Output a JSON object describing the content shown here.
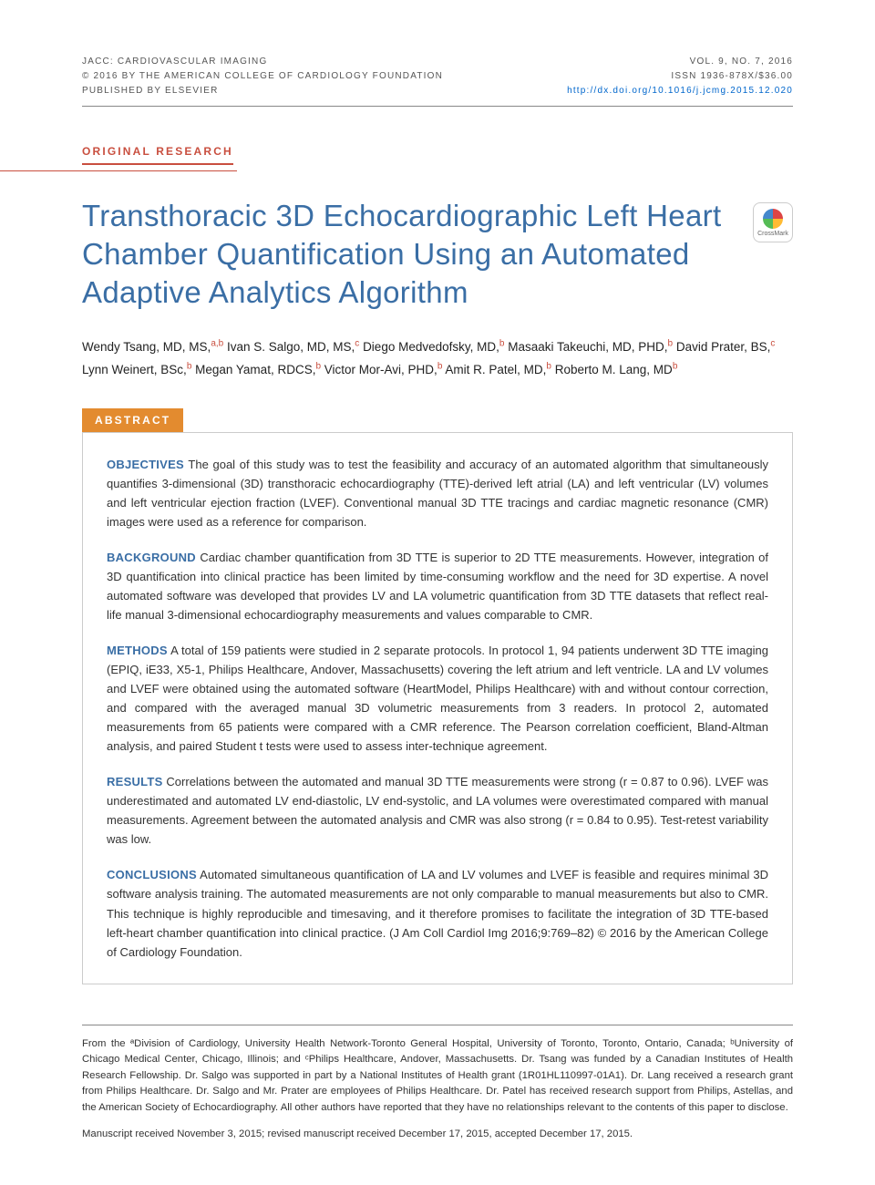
{
  "header": {
    "journal": "JACC: CARDIOVASCULAR IMAGING",
    "copyright": "© 2016 BY THE AMERICAN COLLEGE OF CARDIOLOGY FOUNDATION",
    "publisher": "PUBLISHED BY ELSEVIER",
    "volume": "VOL. 9, NO. 7, 2016",
    "issn": "ISSN 1936-878X/$36.00",
    "doi": "http://dx.doi.org/10.1016/j.jcmg.2015.12.020"
  },
  "section_tag": "ORIGINAL RESEARCH",
  "title": "Transthoracic 3D Echocardiographic Left Heart Chamber Quantification Using an Automated Adaptive Analytics Algorithm",
  "crossmark_label": "CrossMark",
  "authors": [
    {
      "name": "Wendy Tsang, MD, MS,",
      "aff": "a,b"
    },
    {
      "name": "Ivan S. Salgo, MD, MS,",
      "aff": "c"
    },
    {
      "name": "Diego Medvedofsky, MD,",
      "aff": "b"
    },
    {
      "name": "Masaaki Takeuchi, MD, PHD,",
      "aff": "b"
    },
    {
      "name": "David Prater, BS,",
      "aff": "c"
    },
    {
      "name": "Lynn Weinert, BSc,",
      "aff": "b"
    },
    {
      "name": "Megan Yamat, RDCS,",
      "aff": "b"
    },
    {
      "name": "Victor Mor-Avi, PHD,",
      "aff": "b"
    },
    {
      "name": "Amit R. Patel, MD,",
      "aff": "b"
    },
    {
      "name": "Roberto M. Lang, MD",
      "aff": "b"
    }
  ],
  "abstract_label": "ABSTRACT",
  "abstract": {
    "objectives": {
      "label": "OBJECTIVES",
      "text": "The goal of this study was to test the feasibility and accuracy of an automated algorithm that simultaneously quantifies 3-dimensional (3D) transthoracic echocardiography (TTE)-derived left atrial (LA) and left ventricular (LV) volumes and left ventricular ejection fraction (LVEF). Conventional manual 3D TTE tracings and cardiac magnetic resonance (CMR) images were used as a reference for comparison."
    },
    "background": {
      "label": "BACKGROUND",
      "text": "Cardiac chamber quantification from 3D TTE is superior to 2D TTE measurements. However, integration of 3D quantification into clinical practice has been limited by time-consuming workflow and the need for 3D expertise. A novel automated software was developed that provides LV and LA volumetric quantification from 3D TTE datasets that reflect real-life manual 3-dimensional echocardiography measurements and values comparable to CMR."
    },
    "methods": {
      "label": "METHODS",
      "text": "A total of 159 patients were studied in 2 separate protocols. In protocol 1, 94 patients underwent 3D TTE imaging (EPIQ, iE33, X5-1, Philips Healthcare, Andover, Massachusetts) covering the left atrium and left ventricle. LA and LV volumes and LVEF were obtained using the automated software (HeartModel, Philips Healthcare) with and without contour correction, and compared with the averaged manual 3D volumetric measurements from 3 readers. In protocol 2, automated measurements from 65 patients were compared with a CMR reference. The Pearson correlation coefficient, Bland-Altman analysis, and paired Student t tests were used to assess inter-technique agreement."
    },
    "results": {
      "label": "RESULTS",
      "text": "Correlations between the automated and manual 3D TTE measurements were strong (r = 0.87 to 0.96). LVEF was underestimated and automated LV end-diastolic, LV end-systolic, and LA volumes were overestimated compared with manual measurements. Agreement between the automated analysis and CMR was also strong (r = 0.84 to 0.95). Test-retest variability was low."
    },
    "conclusions": {
      "label": "CONCLUSIONS",
      "text": "Automated simultaneous quantification of LA and LV volumes and LVEF is feasible and requires minimal 3D software analysis training. The automated measurements are not only comparable to manual measurements but also to CMR. This technique is highly reproducible and timesaving, and it therefore promises to facilitate the integration of 3D TTE-based left-heart chamber quantification into clinical practice. (J Am Coll Cardiol Img 2016;9:769–82) © 2016 by the American College of Cardiology Foundation."
    }
  },
  "affiliations": "From the ªDivision of Cardiology, University Health Network-Toronto General Hospital, University of Toronto, Toronto, Ontario, Canada; ᵇUniversity of Chicago Medical Center, Chicago, Illinois; and ᶜPhilips Healthcare, Andover, Massachusetts. Dr. Tsang was funded by a Canadian Institutes of Health Research Fellowship. Dr. Salgo was supported in part by a National Institutes of Health grant (1R01HL110997-01A1). Dr. Lang received a research grant from Philips Healthcare. Dr. Salgo and Mr. Prater are employees of Philips Healthcare. Dr. Patel has received research support from Philips, Astellas, and the American Society of Echocardiography. All other authors have reported that they have no relationships relevant to the contents of this paper to disclose.",
  "manuscript_dates": "Manuscript received November 3, 2015; revised manuscript received December 17, 2015, accepted December 17, 2015."
}
